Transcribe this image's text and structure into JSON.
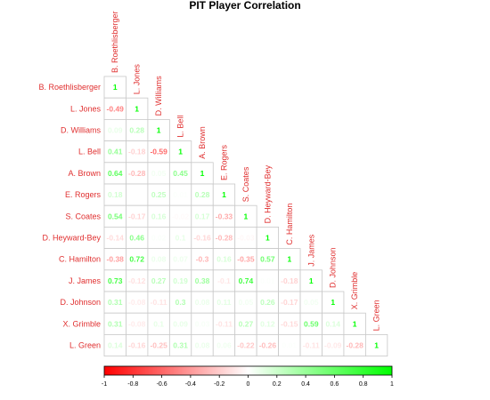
{
  "chart_data": {
    "type": "heatmap",
    "title": "PIT Player Correlation",
    "variables": [
      "B. Roethlisberger",
      "L. Jones",
      "D. Williams",
      "L. Bell",
      "A. Brown",
      "E. Rogers",
      "S. Coates",
      "D. Heyward-Bey",
      "C. Hamilton",
      "J. James",
      "D. Johnson",
      "X. Grimble",
      "L. Green"
    ],
    "matrix_lower": [
      [
        "1"
      ],
      [
        "-0.49",
        "1"
      ],
      [
        "0.09",
        "0.28",
        "1"
      ],
      [
        "0.41",
        "-0.18",
        "-0.59",
        "1"
      ],
      [
        "0.64",
        "-0.28",
        "0.05",
        "0.45",
        "1"
      ],
      [
        "0.18",
        "0",
        "0.25",
        "0.01",
        "0.28",
        "1"
      ],
      [
        "0.54",
        "-0.17",
        "0.16",
        "-0.02",
        "0.17",
        "-0.33",
        "1"
      ],
      [
        "-0.14",
        "0.46",
        "0.02",
        "0.1",
        "-0.16",
        "-0.28",
        "-0.03",
        "1"
      ],
      [
        "-0.38",
        "0.72",
        "0.08",
        "0.07",
        "-0.3",
        "0.16",
        "-0.35",
        "0.57",
        "1"
      ],
      [
        "0.73",
        "-0.12",
        "0.27",
        "0.19",
        "0.38",
        "-0.1",
        "0.74",
        "0.01",
        "-0.18",
        "1"
      ],
      [
        "0.31",
        "-0.08",
        "-0.11",
        "0.3",
        "0.08",
        "0.11",
        "0.05",
        "0.26",
        "-0.17",
        "0.05",
        "1"
      ],
      [
        "0.31",
        "-0.08",
        "0.1",
        "0.09",
        "0.03",
        "-0.11",
        "0.27",
        "0.12",
        "-0.15",
        "0.59",
        "0.14",
        "1"
      ],
      [
        "0.14",
        "-0.16",
        "-0.25",
        "0.31",
        "0.08",
        "0.06",
        "-0.22",
        "-0.26",
        "0.01",
        "-0.11",
        "-0.09",
        "-0.28",
        "1"
      ]
    ],
    "legend": {
      "range": [
        -1,
        1
      ],
      "ticks": [
        "-1",
        "-0.8",
        "-0.6",
        "-0.4",
        "-0.2",
        "0",
        "0.2",
        "0.4",
        "0.6",
        "0.8",
        "1"
      ],
      "placement": "bottom"
    },
    "colors": {
      "negative": "#ff0000",
      "zero": "#ffffff",
      "positive": "#00ff00",
      "labels": "#e03030"
    }
  }
}
